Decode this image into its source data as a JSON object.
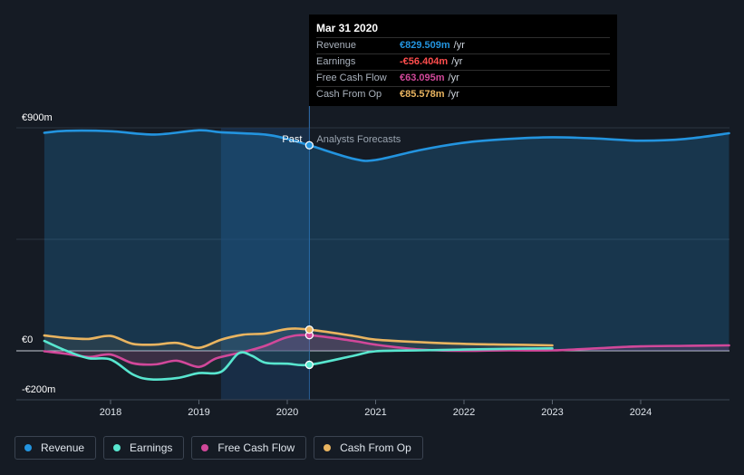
{
  "chart_data": {
    "type": "line",
    "title": "",
    "xlabel": "",
    "ylabel": "",
    "ylim": [
      -200,
      900
    ],
    "xlim": [
      2017.25,
      2025.0
    ],
    "y_tick_labels": [
      {
        "value": 900,
        "label": "€900m"
      },
      {
        "value": 0,
        "label": "€0"
      },
      {
        "value": -200,
        "label": "-€200m"
      }
    ],
    "x_ticks": [
      2018,
      2019,
      2020,
      2021,
      2022,
      2023,
      2024
    ],
    "x_tick_labels": [
      "2018",
      "2019",
      "2020",
      "2021",
      "2022",
      "2023",
      "2024"
    ],
    "past_label": "Past",
    "forecast_label": "Analysts Forecasts",
    "divider_x": 2020.25,
    "legend_position": "bottom-left",
    "series": [
      {
        "name": "Revenue",
        "color": "#2394df",
        "x": [
          2017.25,
          2017.5,
          2018.0,
          2018.5,
          2019.0,
          2019.25,
          2019.75,
          2020.0,
          2020.25,
          2020.75,
          2021.0,
          2021.5,
          2022.0,
          2022.5,
          2023.0,
          2023.5,
          2024.0,
          2024.5,
          2025.0
        ],
        "values": [
          880,
          888,
          886,
          873,
          890,
          882,
          873,
          855,
          829.5,
          775,
          770,
          810,
          840,
          855,
          862,
          857,
          848,
          855,
          878
        ]
      },
      {
        "name": "Earnings",
        "color": "#58e6cf",
        "x": [
          2017.25,
          2017.5,
          2017.75,
          2018.0,
          2018.25,
          2018.45,
          2018.75,
          2019.0,
          2019.25,
          2019.45,
          2019.6,
          2019.75,
          2020.0,
          2020.25,
          2020.75,
          2021.0,
          2021.5,
          2022.0,
          2022.5,
          2023.0
        ],
        "values": [
          40,
          0,
          -30,
          -35,
          -95,
          -115,
          -110,
          -90,
          -85,
          -10,
          -20,
          -48,
          -52,
          -56.4,
          -20,
          -2,
          2,
          5,
          8,
          10
        ]
      },
      {
        "name": "Free Cash Flow",
        "color": "#d1489a",
        "x": [
          2017.25,
          2017.5,
          2017.75,
          2018.0,
          2018.25,
          2018.5,
          2018.75,
          2019.0,
          2019.2,
          2019.5,
          2019.75,
          2020.0,
          2020.25,
          2020.75,
          2021.0,
          2021.5,
          2022.0,
          2022.5,
          2023.0,
          2023.5,
          2024.0,
          2024.5,
          2025.0
        ],
        "values": [
          -2,
          -12,
          -25,
          -15,
          -50,
          -55,
          -40,
          -65,
          -30,
          -5,
          20,
          55,
          63.1,
          40,
          25,
          5,
          0,
          2,
          2,
          10,
          18,
          20,
          22
        ]
      },
      {
        "name": "Cash From Op",
        "color": "#e9b460",
        "x": [
          2017.25,
          2017.5,
          2017.75,
          2018.0,
          2018.25,
          2018.5,
          2018.75,
          2019.0,
          2019.25,
          2019.5,
          2019.75,
          2020.0,
          2020.25,
          2020.75,
          2021.0,
          2021.5,
          2022.0,
          2022.5,
          2023.0
        ],
        "values": [
          62,
          52,
          48,
          60,
          28,
          25,
          32,
          12,
          45,
          65,
          70,
          88,
          85.6,
          60,
          45,
          35,
          28,
          25,
          22
        ]
      }
    ]
  },
  "tooltip": {
    "date": "Mar 31 2020",
    "rows": [
      {
        "label": "Revenue",
        "value": "€829.509m",
        "unit": "/yr",
        "color": "#2394df"
      },
      {
        "label": "Earnings",
        "value": "-€56.404m",
        "unit": "/yr",
        "color": "#ff4d4d"
      },
      {
        "label": "Free Cash Flow",
        "value": "€63.095m",
        "unit": "/yr",
        "color": "#d1489a"
      },
      {
        "label": "Cash From Op",
        "value": "€85.578m",
        "unit": "/yr",
        "color": "#e9b460"
      }
    ]
  },
  "legend": [
    {
      "label": "Revenue",
      "color": "#2394df"
    },
    {
      "label": "Earnings",
      "color": "#58e6cf"
    },
    {
      "label": "Free Cash Flow",
      "color": "#d1489a"
    },
    {
      "label": "Cash From Op",
      "color": "#e9b460"
    }
  ]
}
